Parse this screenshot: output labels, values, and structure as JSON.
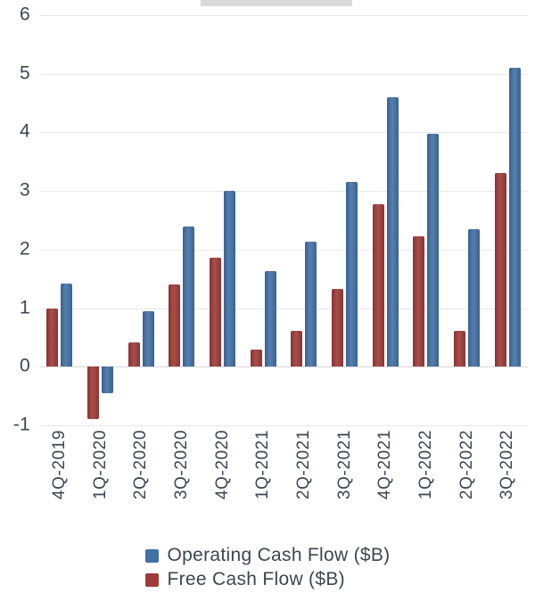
{
  "chart_data": {
    "type": "bar",
    "title": "",
    "categories": [
      "4Q-2019",
      "1Q-2020",
      "2Q-2020",
      "3Q-2020",
      "4Q-2020",
      "1Q-2021",
      "2Q-2021",
      "3Q-2021",
      "4Q-2021",
      "1Q-2022",
      "2Q-2022",
      "3Q-2022"
    ],
    "series": [
      {
        "name": "Free Cash Flow ($B)",
        "color": "#9e3b38",
        "values": [
          1.0,
          -0.9,
          0.42,
          1.4,
          1.86,
          0.3,
          0.62,
          1.33,
          2.77,
          2.22,
          0.62,
          3.3
        ]
      },
      {
        "name": "Operating Cash Flow ($B)",
        "color": "#4271a6",
        "values": [
          1.42,
          -0.45,
          0.95,
          2.4,
          3.0,
          1.64,
          2.13,
          3.15,
          4.6,
          3.98,
          2.35,
          5.1
        ]
      }
    ],
    "legend": [
      {
        "label": "Operating Cash Flow ($B)",
        "color": "#4271a6"
      },
      {
        "label": "Free Cash Flow ($B)",
        "color": "#9e3b38"
      }
    ],
    "xlabel": "",
    "ylabel": "",
    "ylim": [
      -1,
      6
    ],
    "yticks": [
      -1,
      0,
      1,
      2,
      3,
      4,
      5,
      6
    ],
    "grid": true,
    "legend_position": "bottom"
  }
}
